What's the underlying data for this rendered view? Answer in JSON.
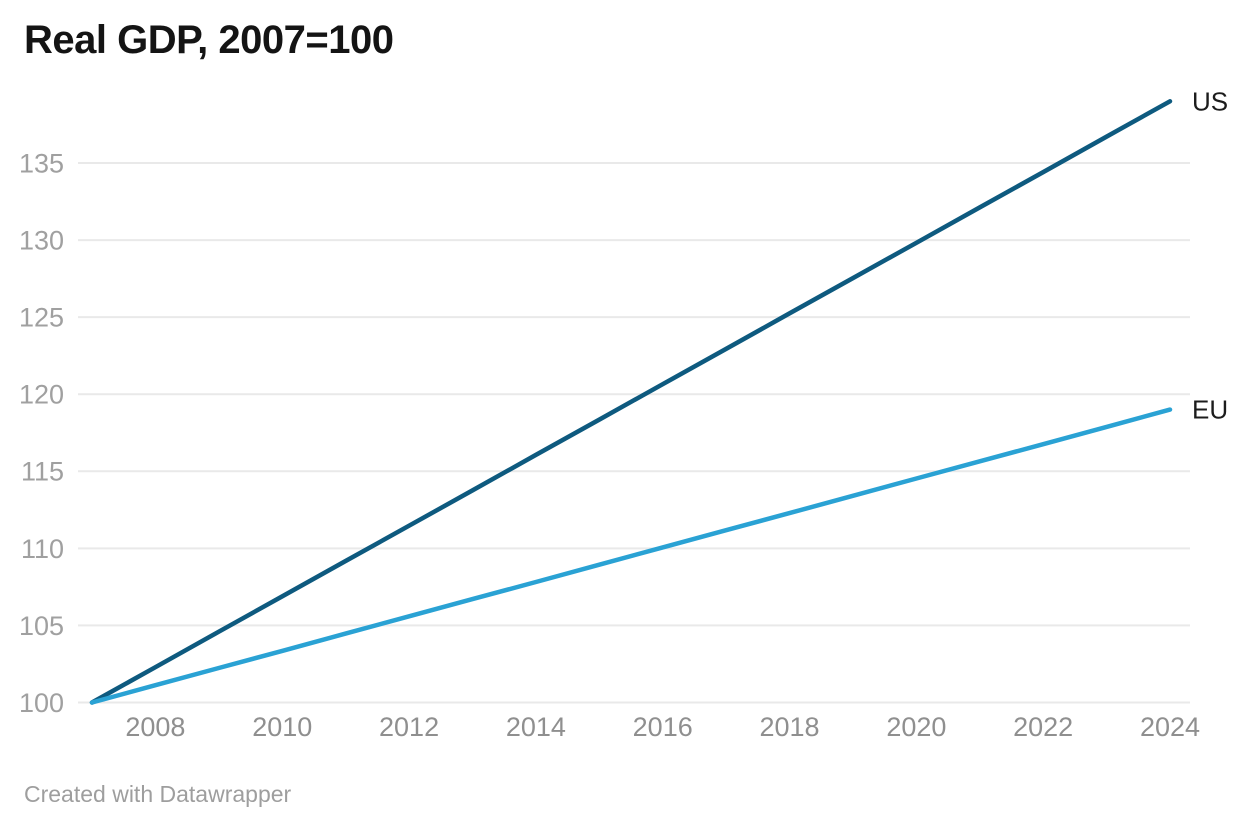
{
  "header": {
    "title": "Real GDP, 2007=100"
  },
  "footer": {
    "text": "Created with Datawrapper"
  },
  "colors": {
    "background": "#ffffff",
    "title": "#141414",
    "gridline": "#e9e9e9",
    "y_tick_label": "#a0a0a0",
    "x_tick_label": "#8f8f8f",
    "series_label": "#1c1c1c",
    "footer": "#9e9e9e",
    "us_line": "#0e5a7f",
    "eu_line": "#2aa2d4"
  },
  "chart_data": {
    "type": "line",
    "title": "Real GDP, 2007=100",
    "xlabel": "",
    "ylabel": "",
    "x": [
      2007,
      2008,
      2009,
      2010,
      2011,
      2012,
      2013,
      2014,
      2015,
      2016,
      2017,
      2018,
      2019,
      2020,
      2021,
      2022,
      2023,
      2024
    ],
    "series": [
      {
        "name": "US",
        "color": "#0e5a7f",
        "values": [
          100,
          102.29,
          104.59,
          106.88,
          109.18,
          111.47,
          113.76,
          116.06,
          118.35,
          120.65,
          122.94,
          125.24,
          127.53,
          129.82,
          132.12,
          134.41,
          136.71,
          139
        ]
      },
      {
        "name": "EU",
        "color": "#2aa2d4",
        "values": [
          100,
          101.12,
          102.24,
          103.35,
          104.47,
          105.59,
          106.71,
          107.82,
          108.94,
          110.06,
          111.18,
          112.29,
          113.41,
          114.53,
          115.65,
          116.76,
          117.88,
          119
        ]
      }
    ],
    "x_ticks": [
      2008,
      2010,
      2012,
      2014,
      2016,
      2018,
      2020,
      2022,
      2024
    ],
    "y_ticks": [
      100,
      105,
      110,
      115,
      120,
      125,
      130,
      135
    ],
    "xlim": [
      2007,
      2024
    ],
    "ylim": [
      100,
      139
    ],
    "grid": "horizontal",
    "legend_position": "line-end-labels"
  }
}
